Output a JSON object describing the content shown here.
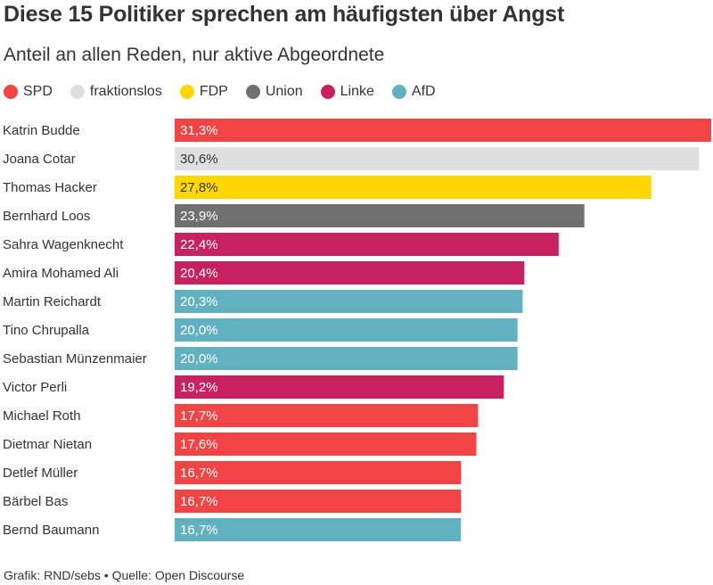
{
  "title": "Diese 15 Politiker sprechen am häufigsten über Angst",
  "subtitle": "Anteil an allen Reden, nur aktive Abgeordnete",
  "legend": [
    {
      "label": "SPD",
      "color": "#f24444"
    },
    {
      "label": "fraktionslos",
      "color": "#dddfe3"
    },
    {
      "label": "FDP",
      "color": "#ffd600"
    },
    {
      "label": "Union",
      "color": "#707070"
    },
    {
      "label": "Linke",
      "color": "#c8215f"
    },
    {
      "label": "AfD",
      "color": "#62b1c0"
    }
  ],
  "chart_data": {
    "type": "bar",
    "orientation": "horizontal",
    "title": "Diese 15 Politiker sprechen am häufigsten über Angst",
    "subtitle": "Anteil an allen Reden, nur aktive Abgeordnete",
    "categories": [
      "Katrin Budde",
      "Joana Cotar",
      "Thomas Hacker",
      "Bernhard Loos",
      "Sahra Wagenknecht",
      "Amira Mohamed Ali",
      "Martin Reichardt",
      "Tino Chrupalla",
      "Sebastian Münzenmaier",
      "Victor Perli",
      "Michael Roth",
      "Dietmar Nietan",
      "Detlef Müller",
      "Bärbel Bas",
      "Bernd Baumann"
    ],
    "values": [
      31.3,
      30.6,
      27.8,
      23.9,
      22.4,
      20.4,
      20.3,
      20.0,
      20.0,
      19.2,
      17.7,
      17.6,
      16.7,
      16.7,
      16.7
    ],
    "value_labels": [
      "31,3%",
      "30,6%",
      "27,8%",
      "23,9%",
      "22,4%",
      "20,4%",
      "20,3%",
      "20,0%",
      "20,0%",
      "19,2%",
      "17,7%",
      "17,6%",
      "16,7%",
      "16,7%",
      "16,7%"
    ],
    "party": [
      "SPD",
      "fraktionslos",
      "FDP",
      "Union",
      "Linke",
      "Linke",
      "AfD",
      "AfD",
      "AfD",
      "Linke",
      "SPD",
      "SPD",
      "SPD",
      "SPD",
      "AfD"
    ],
    "xlim": [
      0,
      31.3
    ],
    "grid": false,
    "legend_position": "top-left"
  },
  "footer": "Grafik: RND/sebs • Quelle: Open Discourse"
}
